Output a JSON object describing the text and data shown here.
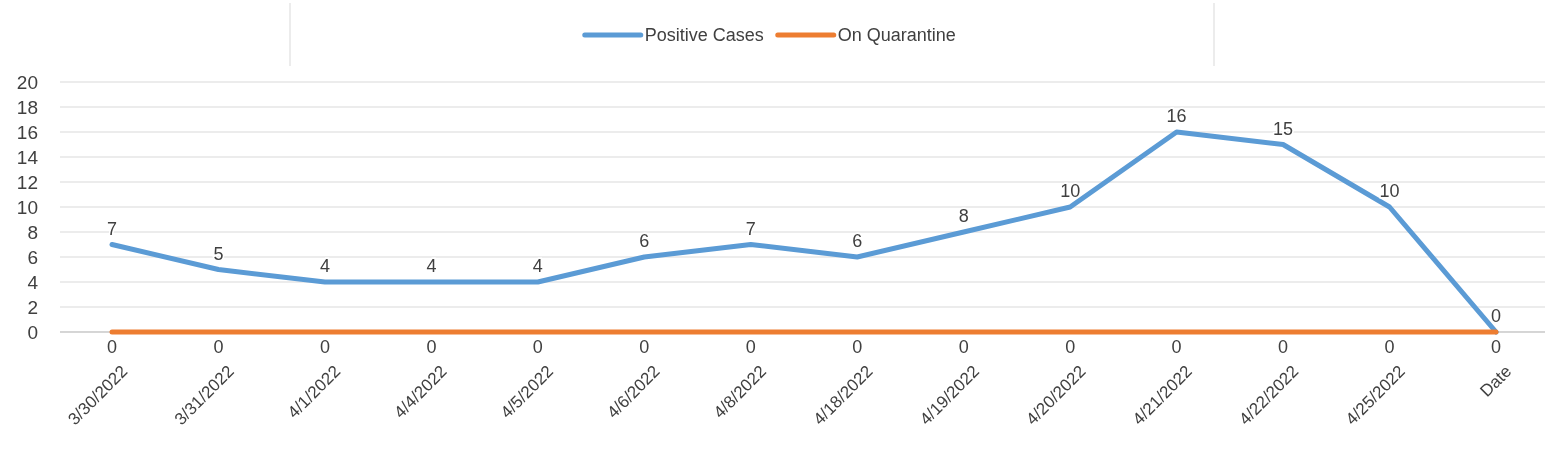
{
  "chart_data": {
    "type": "line",
    "categories": [
      "3/30/2022",
      "3/31/2022",
      "4/1/2022",
      "4/4/2022",
      "4/5/2022",
      "4/6/2022",
      "4/8/2022",
      "4/18/2022",
      "4/19/2022",
      "4/20/2022",
      "4/21/2022",
      "4/22/2022",
      "4/25/2022",
      "Date"
    ],
    "series": [
      {
        "name": "Positive Cases",
        "color": "#5b9bd5",
        "values": [
          7,
          5,
          4,
          4,
          4,
          6,
          7,
          6,
          8,
          10,
          16,
          15,
          10,
          0
        ]
      },
      {
        "name": "On Quarantine",
        "color": "#ed7d31",
        "values": [
          0,
          0,
          0,
          0,
          0,
          0,
          0,
          0,
          0,
          0,
          0,
          0,
          0,
          0
        ]
      }
    ],
    "ylim": [
      0,
      20
    ],
    "yticks": [
      0,
      2,
      4,
      6,
      8,
      10,
      12,
      14,
      16,
      18,
      20
    ],
    "grid": "y",
    "legend": "top",
    "data_labels": true,
    "marker": "none",
    "line_style": "solid"
  }
}
